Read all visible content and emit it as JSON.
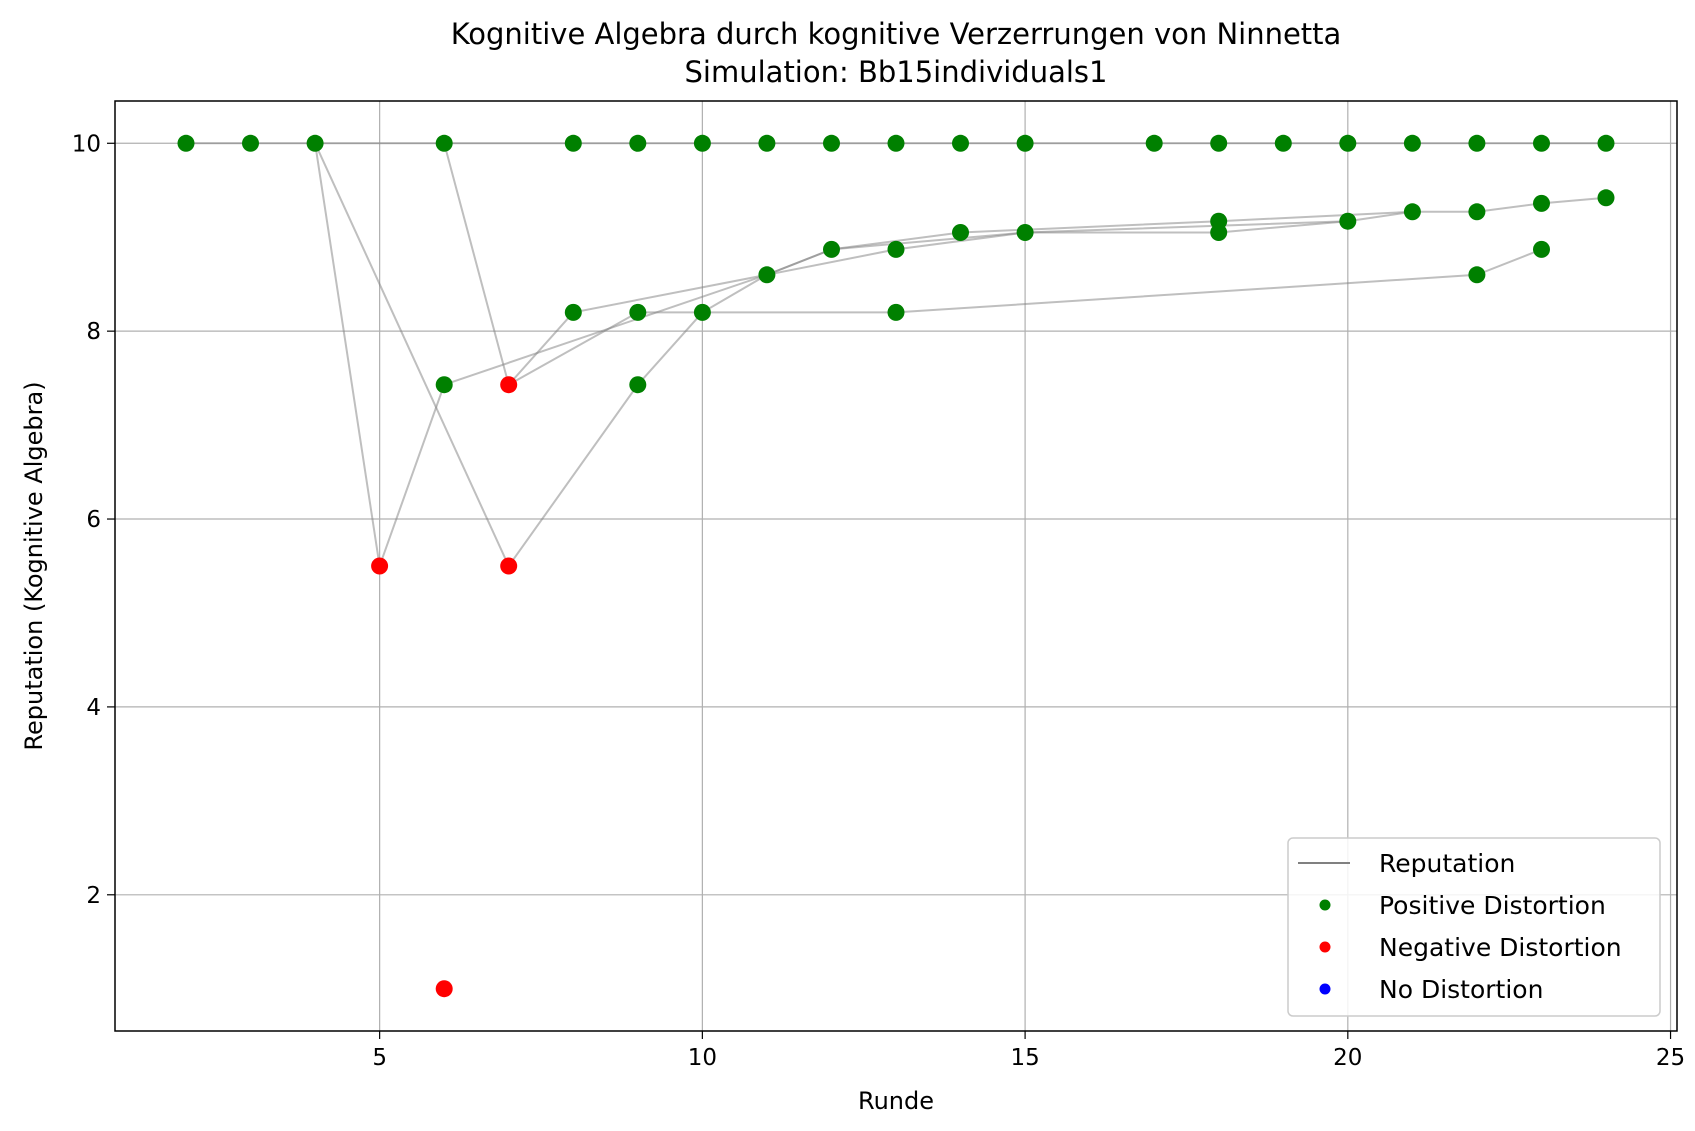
{
  "chart_data": {
    "type": "line",
    "title": "Kognitive Algebra durch kognitive Verzerrungen von Ninnetta",
    "subtitle": "Simulation: Bb15individuals1",
    "xlabel": "Runde",
    "ylabel": "Reputation (Kognitive Algebra)",
    "xlim": [
      0.9,
      25.1
    ],
    "ylim": [
      0.55,
      10.45
    ],
    "xticks": [
      5,
      10,
      15,
      20,
      25
    ],
    "yticks": [
      2,
      4,
      6,
      8,
      10
    ],
    "grid": true,
    "legend_position": "bottom-right",
    "colors": {
      "positive": "#008000",
      "negative": "#ff0000",
      "none": "#0000ff",
      "line": "#808080"
    },
    "legend": [
      {
        "label": "Reputation",
        "kind": "line",
        "color": "#808080"
      },
      {
        "label": "Positive Distortion",
        "kind": "marker",
        "color": "#008000"
      },
      {
        "label": "Negative Distortion",
        "kind": "marker",
        "color": "#ff0000"
      },
      {
        "label": "No Distortion",
        "kind": "marker",
        "color": "#0000ff"
      }
    ],
    "series": [
      {
        "points": [
          [
            2,
            10
          ],
          [
            3,
            10
          ],
          [
            4,
            10
          ],
          [
            6,
            10
          ],
          [
            8,
            10
          ],
          [
            9,
            10
          ],
          [
            10,
            10
          ],
          [
            11,
            10
          ],
          [
            12,
            10
          ],
          [
            13,
            10
          ],
          [
            14,
            10
          ],
          [
            15,
            10
          ],
          [
            17,
            10
          ],
          [
            18,
            10
          ],
          [
            19,
            10
          ],
          [
            20,
            10
          ],
          [
            21,
            10
          ],
          [
            22,
            10
          ],
          [
            23,
            10
          ],
          [
            24,
            10
          ]
        ]
      },
      {
        "points": [
          [
            6,
            10
          ],
          [
            7,
            7.43
          ],
          [
            8,
            8.2
          ],
          [
            11,
            8.6
          ],
          [
            12,
            8.87
          ],
          [
            14,
            9.05
          ],
          [
            18,
            9.17
          ],
          [
            21,
            9.27
          ],
          [
            22,
            9.27
          ],
          [
            23,
            9.36
          ],
          [
            24,
            9.42
          ]
        ]
      },
      {
        "points": [
          [
            4,
            10
          ],
          [
            5,
            5.5
          ],
          [
            6,
            7.43
          ],
          [
            11,
            8.6
          ],
          [
            13,
            8.87
          ],
          [
            15,
            9.05
          ],
          [
            18,
            9.05
          ],
          [
            20,
            9.17
          ],
          [
            21,
            9.27
          ]
        ]
      },
      {
        "points": [
          [
            4,
            10
          ],
          [
            7,
            5.5
          ],
          [
            9,
            7.43
          ],
          [
            10,
            8.2
          ],
          [
            11,
            8.6
          ],
          [
            12,
            8.87
          ],
          [
            15,
            9.05
          ],
          [
            20,
            9.17
          ]
        ]
      },
      {
        "points": [
          [
            7,
            7.43
          ],
          [
            9,
            8.2
          ],
          [
            13,
            8.2
          ],
          [
            22,
            8.6
          ],
          [
            23,
            8.87
          ]
        ]
      }
    ],
    "markers": [
      {
        "x": 2,
        "y": 10,
        "d": "positive"
      },
      {
        "x": 3,
        "y": 10,
        "d": "positive"
      },
      {
        "x": 4,
        "y": 10,
        "d": "positive"
      },
      {
        "x": 6,
        "y": 10,
        "d": "positive"
      },
      {
        "x": 8,
        "y": 10,
        "d": "positive"
      },
      {
        "x": 9,
        "y": 10,
        "d": "positive"
      },
      {
        "x": 10,
        "y": 10,
        "d": "positive"
      },
      {
        "x": 11,
        "y": 10,
        "d": "positive"
      },
      {
        "x": 12,
        "y": 10,
        "d": "positive"
      },
      {
        "x": 13,
        "y": 10,
        "d": "positive"
      },
      {
        "x": 14,
        "y": 10,
        "d": "positive"
      },
      {
        "x": 15,
        "y": 10,
        "d": "positive"
      },
      {
        "x": 17,
        "y": 10,
        "d": "positive"
      },
      {
        "x": 18,
        "y": 10,
        "d": "positive"
      },
      {
        "x": 19,
        "y": 10,
        "d": "positive"
      },
      {
        "x": 20,
        "y": 10,
        "d": "positive"
      },
      {
        "x": 21,
        "y": 10,
        "d": "positive"
      },
      {
        "x": 22,
        "y": 10,
        "d": "positive"
      },
      {
        "x": 23,
        "y": 10,
        "d": "positive"
      },
      {
        "x": 24,
        "y": 10,
        "d": "positive"
      },
      {
        "x": 5,
        "y": 5.5,
        "d": "negative"
      },
      {
        "x": 6,
        "y": 7.43,
        "d": "positive"
      },
      {
        "x": 6,
        "y": 1.0,
        "d": "negative"
      },
      {
        "x": 7,
        "y": 7.43,
        "d": "negative"
      },
      {
        "x": 7,
        "y": 5.5,
        "d": "negative"
      },
      {
        "x": 8,
        "y": 8.2,
        "d": "positive"
      },
      {
        "x": 9,
        "y": 8.2,
        "d": "positive"
      },
      {
        "x": 9,
        "y": 7.43,
        "d": "positive"
      },
      {
        "x": 10,
        "y": 8.2,
        "d": "positive"
      },
      {
        "x": 11,
        "y": 8.6,
        "d": "positive"
      },
      {
        "x": 12,
        "y": 8.87,
        "d": "positive"
      },
      {
        "x": 13,
        "y": 8.87,
        "d": "positive"
      },
      {
        "x": 13,
        "y": 8.2,
        "d": "positive"
      },
      {
        "x": 14,
        "y": 9.05,
        "d": "positive"
      },
      {
        "x": 15,
        "y": 9.05,
        "d": "positive"
      },
      {
        "x": 18,
        "y": 9.17,
        "d": "positive"
      },
      {
        "x": 18,
        "y": 9.05,
        "d": "positive"
      },
      {
        "x": 20,
        "y": 9.17,
        "d": "positive"
      },
      {
        "x": 21,
        "y": 9.27,
        "d": "positive"
      },
      {
        "x": 22,
        "y": 9.27,
        "d": "positive"
      },
      {
        "x": 22,
        "y": 8.6,
        "d": "positive"
      },
      {
        "x": 23,
        "y": 9.36,
        "d": "positive"
      },
      {
        "x": 23,
        "y": 8.87,
        "d": "positive"
      },
      {
        "x": 24,
        "y": 9.42,
        "d": "positive"
      }
    ]
  }
}
